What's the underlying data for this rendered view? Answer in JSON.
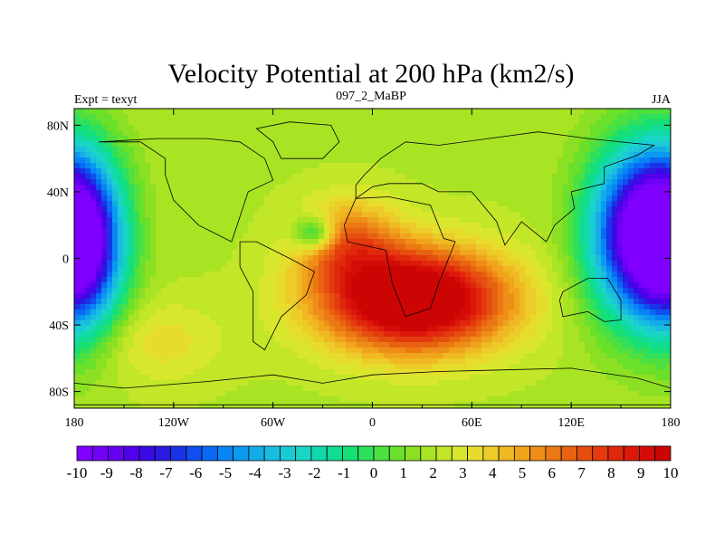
{
  "chart_data": {
    "type": "heatmap",
    "title": "Velocity Potential at 200 hPa (km2/s)",
    "subtitle_left": "Expt = texyt",
    "subtitle_center": "097_2_MaBP",
    "subtitle_right": "JJA",
    "xlim": [
      -180,
      180
    ],
    "ylim": [
      -90,
      90
    ],
    "x_ticks": [
      {
        "value": -180,
        "label": "180"
      },
      {
        "value": -120,
        "label": "120W"
      },
      {
        "value": -60,
        "label": "60W"
      },
      {
        "value": 0,
        "label": "0"
      },
      {
        "value": 60,
        "label": "60E"
      },
      {
        "value": 120,
        "label": "120E"
      },
      {
        "value": 180,
        "label": "180"
      }
    ],
    "y_ticks": [
      {
        "value": 80,
        "label": "80N"
      },
      {
        "value": 40,
        "label": "40N"
      },
      {
        "value": 0,
        "label": "0"
      },
      {
        "value": -40,
        "label": "40S"
      },
      {
        "value": -80,
        "label": "80S"
      }
    ],
    "colorbar": {
      "levels": [
        -10,
        -9.5,
        -9,
        -8.5,
        -8,
        -7.5,
        -7,
        -6.5,
        -6,
        -5.5,
        -5,
        -4.5,
        -4,
        -3.5,
        -3,
        -2.5,
        -2,
        -1.5,
        -1,
        -0.5,
        0,
        0.5,
        1,
        1.5,
        2,
        2.5,
        3,
        3.5,
        4,
        4.5,
        5,
        5.5,
        6,
        6.5,
        7,
        7.5,
        8,
        8.5,
        9,
        9.5,
        10
      ],
      "labels": [
        "-10",
        "-9",
        "-8",
        "-7",
        "-6",
        "-5",
        "-4",
        "-3",
        "-2",
        "-1",
        "0",
        "1",
        "2",
        "3",
        "4",
        "5",
        "6",
        "7",
        "8",
        "9",
        "10"
      ],
      "label_values": [
        -10,
        -9,
        -8,
        -7,
        -6,
        -5,
        -4,
        -3,
        -2,
        -1,
        0,
        1,
        2,
        3,
        4,
        5,
        6,
        7,
        8,
        9,
        10
      ],
      "colors": [
        "#7f00ff",
        "#7200f6",
        "#6500f0",
        "#5000ec",
        "#3a0ae6",
        "#2a1ae0",
        "#1a33e6",
        "#0f4ff0",
        "#0a6af5",
        "#0a84f5",
        "#0a9af0",
        "#14ace8",
        "#1abde0",
        "#1acbd6",
        "#1ad6c4",
        "#12d9ac",
        "#10dc92",
        "#16df78",
        "#2ee05c",
        "#4ee040",
        "#6be02a",
        "#8ce024",
        "#a8e424",
        "#c2e628",
        "#d8e62c",
        "#e6dc2c",
        "#eccc28",
        "#f0b822",
        "#f0a41c",
        "#ee8e18",
        "#ec7814",
        "#e86212",
        "#e64e10",
        "#e43a0e",
        "#e0280c",
        "#dc180a",
        "#d40c08",
        "#cc0404"
      ],
      "min": -10,
      "max": 10
    },
    "field": {
      "description_units": "km2/s (scaled)",
      "components": [
        {
          "lon": 25,
          "lat": -25,
          "amp": 10.5,
          "sx": 55,
          "sy": 30
        },
        {
          "lon": -15,
          "lat": 10,
          "amp": 4.0,
          "sx": 30,
          "sy": 25
        },
        {
          "lon": -35,
          "lat": 15,
          "amp": -4.5,
          "sx": 12,
          "sy": 10
        },
        {
          "lon": 160,
          "lat": 15,
          "amp": -11.0,
          "sx": 30,
          "sy": 50
        },
        {
          "lon": -175,
          "lat": 10,
          "amp": -11.0,
          "sx": 25,
          "sy": 50
        },
        {
          "lon": -130,
          "lat": -50,
          "amp": 1.5,
          "sx": 40,
          "sy": 25
        }
      ],
      "background": 2.0
    }
  }
}
